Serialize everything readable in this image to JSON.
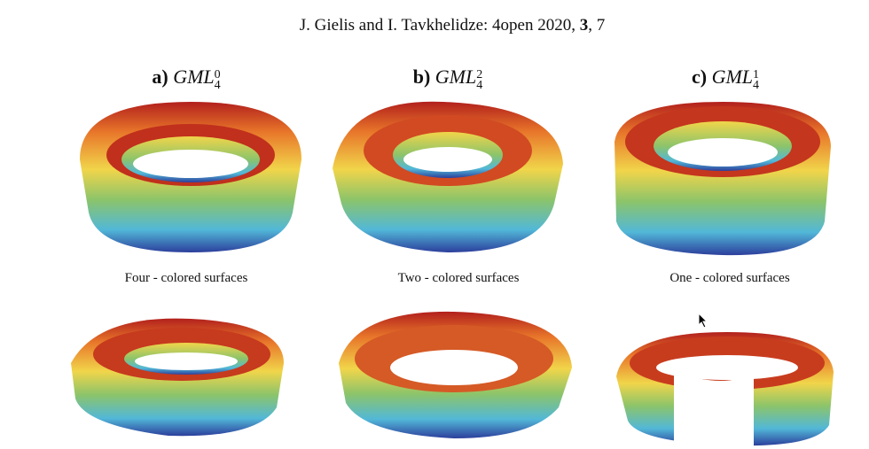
{
  "header": {
    "authors": "J. Gielis and I. Tavkhelidze: 4open 2020, ",
    "volume": "3",
    "sep": ", ",
    "number": "7"
  },
  "panels": [
    {
      "letter": "a)",
      "name": "GML",
      "sup": "0",
      "sub": "4",
      "caption": "Four - colored surfaces"
    },
    {
      "letter": "b)",
      "name": "GML",
      "sup": "2",
      "sub": "4",
      "caption": "Two - colored surfaces"
    },
    {
      "letter": "c)",
      "name": "GML",
      "sup": "1",
      "sub": "4",
      "caption": "One - colored surfaces"
    }
  ],
  "colors": {
    "red": "#b2201c",
    "orange": "#e8762a",
    "yellow": "#f1d54a",
    "green": "#8cc46a",
    "cyan": "#52b8d8",
    "blue": "#2c3f9c"
  }
}
